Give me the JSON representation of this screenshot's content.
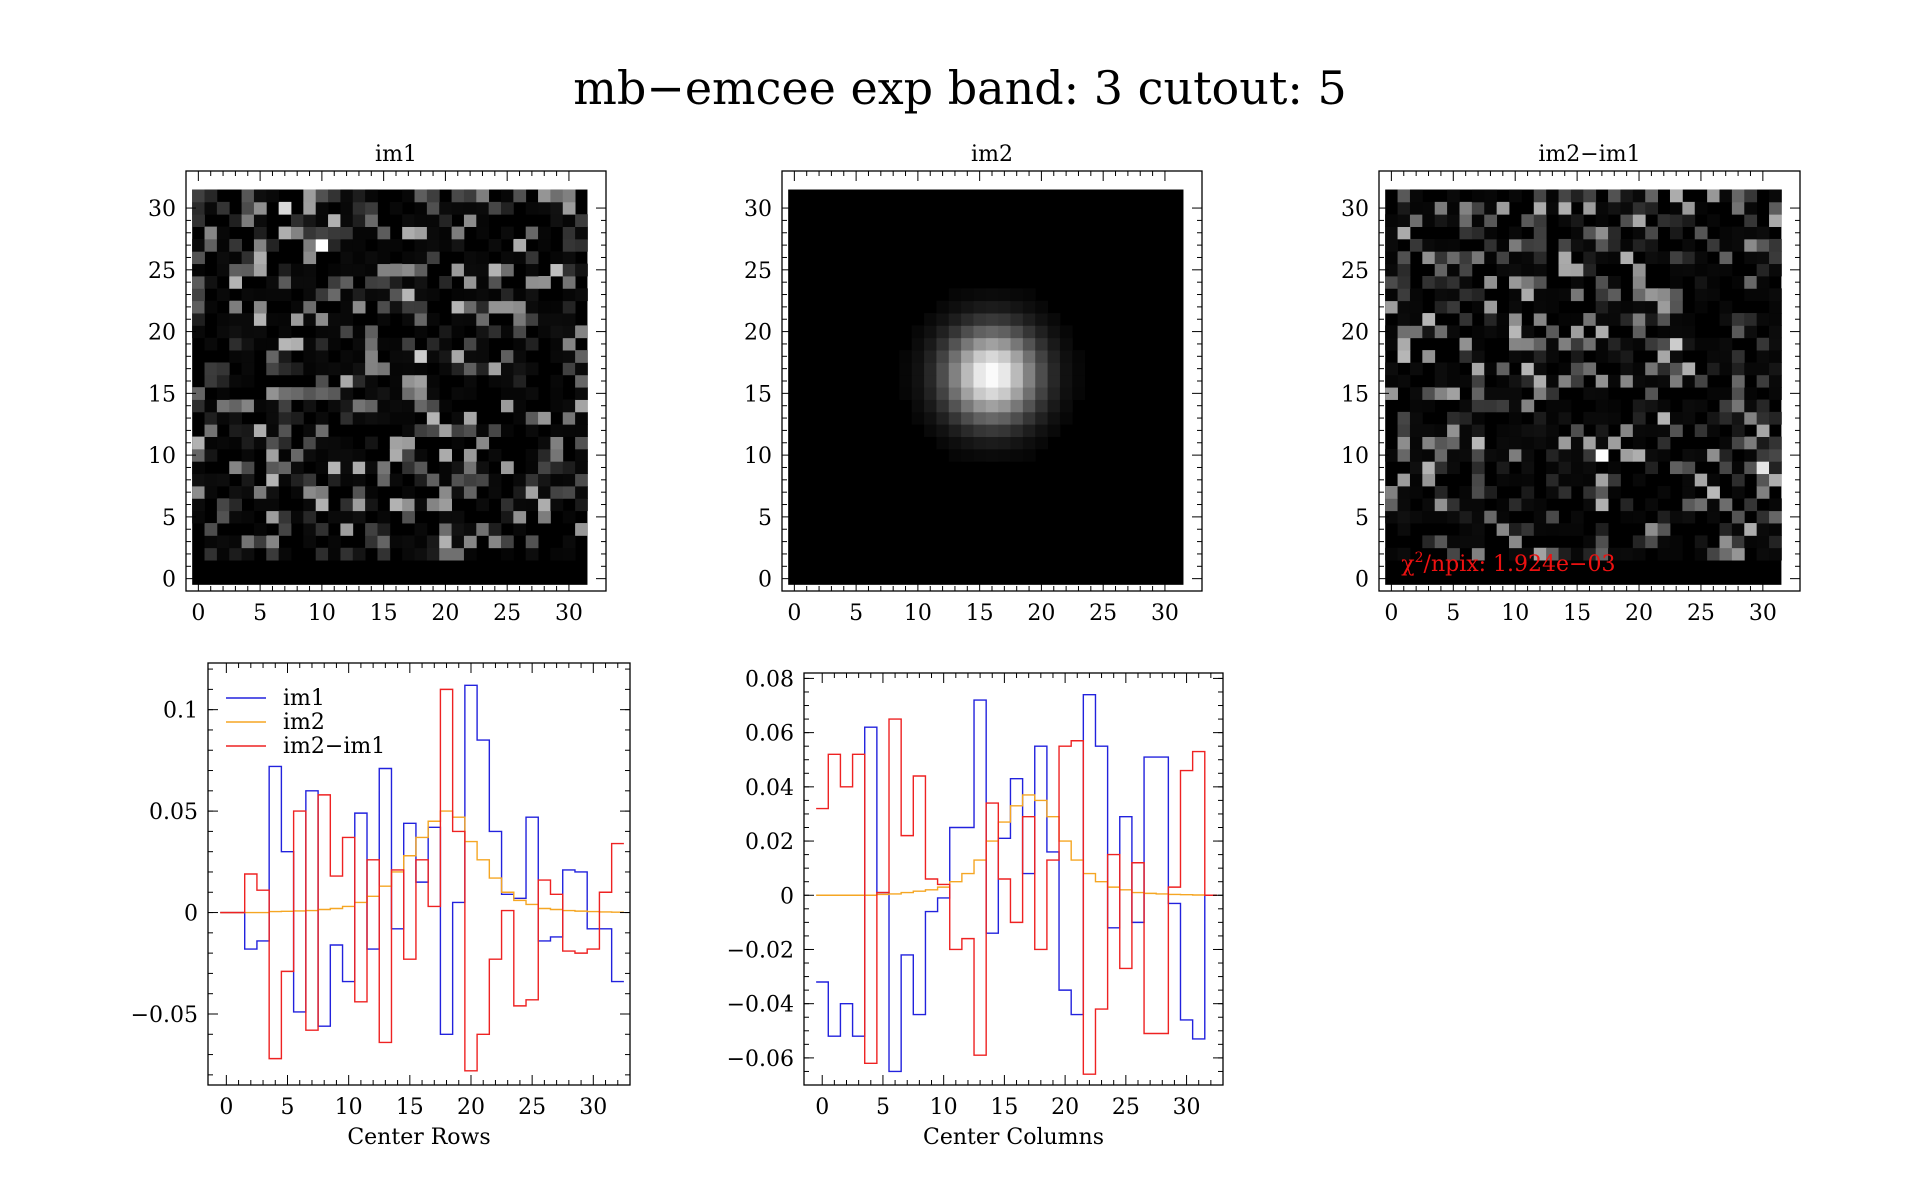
{
  "figure": {
    "title": "mb−emcee exp band: 3 cutout: 5"
  },
  "colors": {
    "background": "#ffffff",
    "axes": "#000000",
    "im1": "#2222dd",
    "im2": "#f5a623",
    "diff": "#ee2222",
    "annotation": "#ee1111"
  },
  "chart_data": [
    {
      "type": "heatmap",
      "title": "im1",
      "xlim": [
        -1,
        33
      ],
      "ylim": [
        -1,
        33
      ],
      "xticks": [
        "0",
        "5",
        "10",
        "15",
        "20",
        "25",
        "30"
      ],
      "yticks": [
        "0",
        "5",
        "10",
        "15",
        "20",
        "25",
        "30"
      ],
      "grid_size": [
        32,
        32
      ],
      "colormap": "gray",
      "description_seed": 17,
      "hot_pixels": [
        [
          10,
          27,
          1.0
        ],
        [
          7,
          30,
          0.85
        ],
        [
          3,
          24,
          0.7
        ],
        [
          18,
          18,
          0.8
        ],
        [
          29,
          25,
          0.75
        ]
      ]
    },
    {
      "type": "heatmap",
      "title": "im2",
      "xlim": [
        -1,
        33
      ],
      "ylim": [
        -1,
        33
      ],
      "xticks": [
        "0",
        "5",
        "10",
        "15",
        "20",
        "25",
        "30"
      ],
      "yticks": [
        "0",
        "5",
        "10",
        "15",
        "20",
        "25",
        "30"
      ],
      "grid_size": [
        32,
        32
      ],
      "colormap": "gray",
      "gaussian_center": [
        16.5,
        17.0
      ],
      "gaussian_sigma": 2.6
    },
    {
      "type": "heatmap",
      "title": "im2−im1",
      "xlim": [
        -1,
        33
      ],
      "ylim": [
        -1,
        33
      ],
      "xticks": [
        "0",
        "5",
        "10",
        "15",
        "20",
        "25",
        "30"
      ],
      "yticks": [
        "0",
        "5",
        "10",
        "15",
        "20",
        "25",
        "30"
      ],
      "grid_size": [
        32,
        32
      ],
      "colormap": "gray",
      "description_seed": 91,
      "hot_pixels": [
        [
          17,
          10,
          1.0
        ],
        [
          30,
          9,
          0.9
        ],
        [
          23,
          19,
          0.8
        ],
        [
          24,
          30,
          0.6
        ]
      ],
      "annotation": {
        "prefix": "χ",
        "superscript": "2",
        "text": "/npix: 1.924e−03"
      }
    },
    {
      "type": "line",
      "step": true,
      "xlabel": "Center Rows",
      "xlim": [
        -1.5,
        33
      ],
      "ylim": [
        -0.085,
        0.123
      ],
      "xticks": [
        0,
        5,
        10,
        15,
        20,
        25,
        30
      ],
      "yticks": [
        {
          "v": 0.1,
          "label": "0.1"
        },
        {
          "v": 0.05,
          "label": "0.05"
        },
        {
          "v": 0,
          "label": "0"
        },
        {
          "v": -0.05,
          "label": "−0.05"
        }
      ],
      "legend": {
        "position": "top-left",
        "entries": [
          "im1",
          "im2",
          "im2−im1"
        ]
      },
      "x": [
        0,
        1,
        2,
        3,
        4,
        5,
        6,
        7,
        8,
        9,
        10,
        11,
        12,
        13,
        14,
        15,
        16,
        17,
        18,
        19,
        20,
        21,
        22,
        23,
        24,
        25,
        26,
        27,
        28,
        29,
        30,
        31,
        32
      ],
      "series": [
        {
          "name": "im1",
          "values": [
            0,
            0,
            -0.018,
            -0.014,
            0.072,
            0.03,
            -0.049,
            0.06,
            -0.056,
            -0.016,
            -0.034,
            0.049,
            -0.018,
            0.071,
            -0.008,
            0.044,
            0.015,
            0.042,
            -0.06,
            0.005,
            0.112,
            0.085,
            0.04,
            0.009,
            0.007,
            0.047,
            -0.014,
            -0.012,
            0.021,
            0.02,
            -0.008,
            -0.008,
            -0.034
          ]
        },
        {
          "name": "im2",
          "values": [
            0,
            0,
            0,
            0,
            0.0005,
            0.0006,
            0.0008,
            0.001,
            0.0015,
            0.002,
            0.003,
            0.005,
            0.008,
            0.013,
            0.02,
            0.028,
            0.037,
            0.045,
            0.05,
            0.047,
            0.035,
            0.026,
            0.017,
            0.01,
            0.006,
            0.004,
            0.002,
            0.0015,
            0.001,
            0.0007,
            0.0005,
            0.0003,
            0.0002
          ]
        },
        {
          "name": "im2−im1",
          "values": [
            0,
            0,
            0.019,
            0.011,
            -0.072,
            -0.029,
            0.05,
            -0.058,
            0.058,
            0.018,
            0.037,
            -0.044,
            0.026,
            -0.064,
            0.021,
            -0.023,
            0.026,
            0.003,
            0.11,
            0.04,
            -0.078,
            -0.06,
            -0.023,
            0.001,
            -0.046,
            -0.043,
            0.016,
            0.009,
            -0.019,
            -0.02,
            -0.018,
            0.01,
            0.034
          ]
        }
      ]
    },
    {
      "type": "line",
      "step": true,
      "xlabel": "Center Columns",
      "xlim": [
        -1.5,
        33
      ],
      "ylim": [
        -0.07,
        0.082
      ],
      "xticks": [
        0,
        5,
        10,
        15,
        20,
        25,
        30
      ],
      "yticks": [
        {
          "v": 0.08,
          "label": "0.08"
        },
        {
          "v": 0.06,
          "label": "0.06"
        },
        {
          "v": 0.04,
          "label": "0.04"
        },
        {
          "v": 0.02,
          "label": "0.02"
        },
        {
          "v": 0,
          "label": "0"
        },
        {
          "v": -0.02,
          "label": "−0.02"
        },
        {
          "v": -0.04,
          "label": "−0.04"
        },
        {
          "v": -0.06,
          "label": "−0.06"
        }
      ],
      "x": [
        0,
        1,
        2,
        3,
        4,
        5,
        6,
        7,
        8,
        9,
        10,
        11,
        12,
        13,
        14,
        15,
        16,
        17,
        18,
        19,
        20,
        21,
        22,
        23,
        24,
        25,
        26,
        27,
        28,
        29,
        30,
        31,
        32
      ],
      "series": [
        {
          "name": "im1",
          "values": [
            -0.032,
            -0.052,
            -0.04,
            -0.052,
            0.062,
            0.001,
            -0.065,
            -0.022,
            -0.044,
            -0.006,
            -0.001,
            0.025,
            0.025,
            0.072,
            -0.014,
            0.021,
            0.043,
            0.008,
            0.055,
            0.016,
            -0.035,
            -0.044,
            0.074,
            0.055,
            -0.012,
            0.029,
            -0.01,
            0.051,
            0.051,
            -0.003,
            -0.046,
            -0.053,
            0
          ]
        },
        {
          "name": "im2",
          "values": [
            0,
            0,
            0,
            0,
            0,
            0.0003,
            0.0005,
            0.001,
            0.0015,
            0.002,
            0.003,
            0.005,
            0.008,
            0.013,
            0.02,
            0.027,
            0.033,
            0.037,
            0.035,
            0.029,
            0.02,
            0.013,
            0.008,
            0.005,
            0.003,
            0.002,
            0.001,
            0.0007,
            0.0005,
            0.0003,
            0.0002,
            0.0001,
            0
          ]
        },
        {
          "name": "im2−im1",
          "values": [
            0.032,
            0.052,
            0.04,
            0.052,
            -0.062,
            0.001,
            0.065,
            0.022,
            0.044,
            0.006,
            0.004,
            -0.02,
            -0.016,
            -0.059,
            0.034,
            0.006,
            -0.01,
            0.029,
            -0.02,
            0.013,
            0.055,
            0.057,
            -0.066,
            -0.042,
            0.015,
            -0.027,
            0.012,
            -0.051,
            -0.051,
            0.003,
            0.046,
            0.053,
            0
          ]
        }
      ]
    }
  ]
}
